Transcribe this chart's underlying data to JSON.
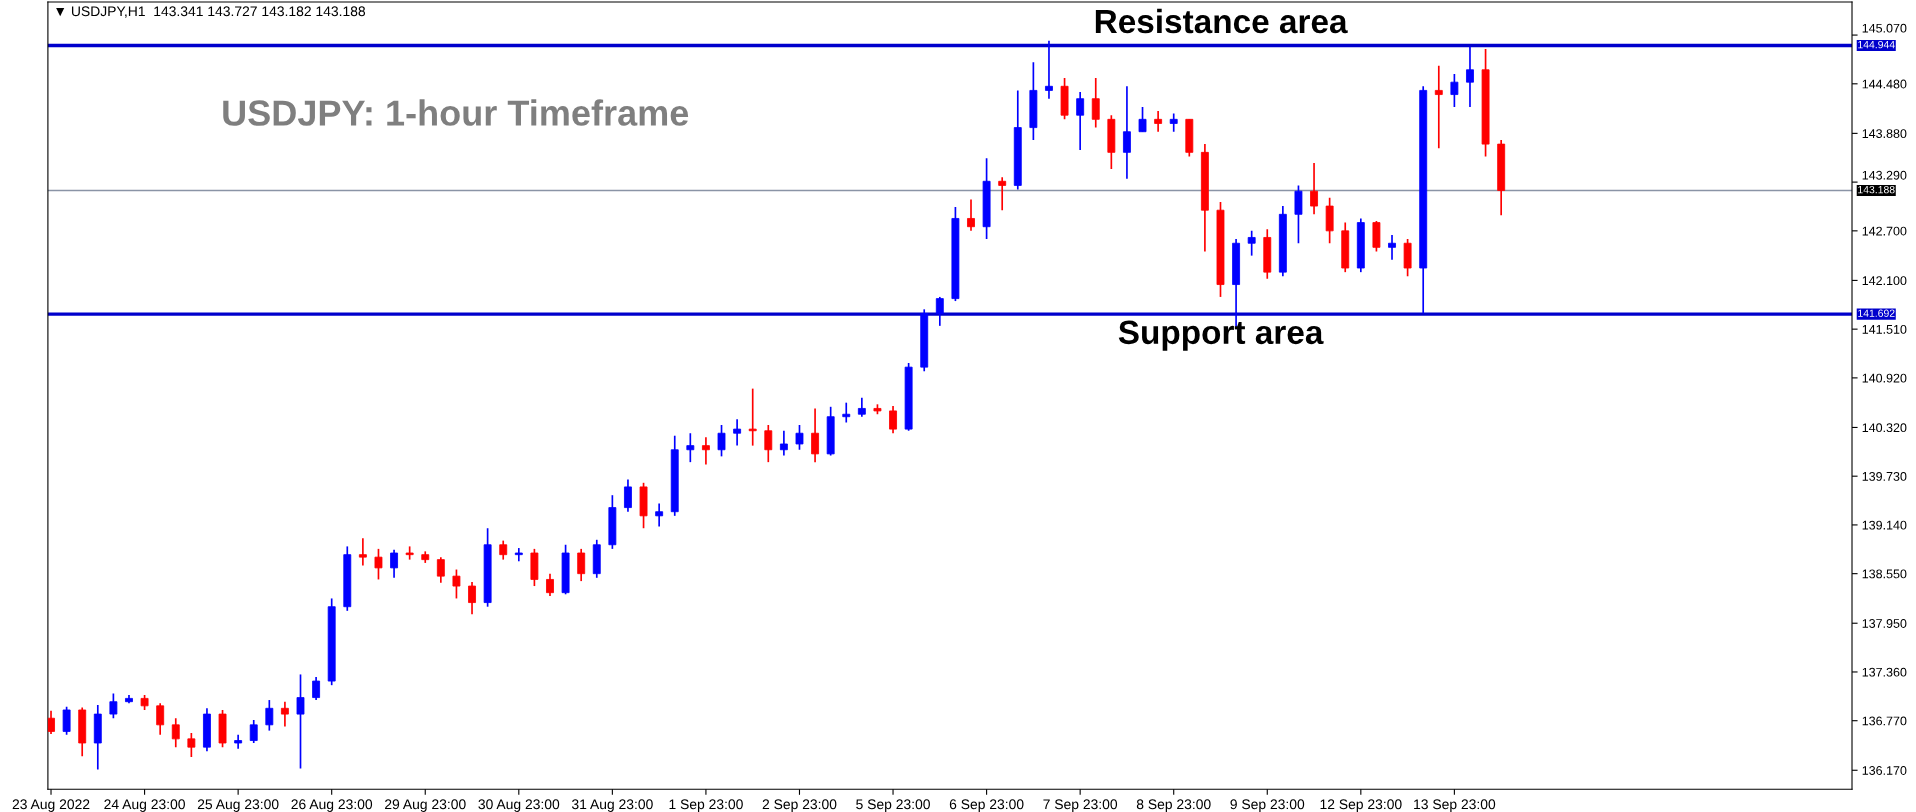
{
  "chart_data": {
    "type": "candlestick",
    "title": "USDJPY: 1-hour Timeframe",
    "annotations": [
      "▼ USDJPY,H1  143.341 143.727 143.182 143.188",
      "144.944",
      "141.692",
      "143.188"
    ],
    "categories": [
      "23 Aug 2022",
      null,
      null,
      null,
      null,
      null,
      "24 Aug 23:00",
      null,
      null,
      null,
      null,
      null,
      "25 Aug 23:00",
      null,
      null,
      null,
      null,
      null,
      "26 Aug 23:00",
      null,
      null,
      null,
      null,
      null,
      "29 Aug 23:00",
      null,
      null,
      null,
      null,
      null,
      "30 Aug 23:00",
      null,
      null,
      null,
      null,
      null,
      "31 Aug 23:00",
      null,
      null,
      null,
      null,
      null,
      "1 Sep 23:00",
      null,
      null,
      null,
      null,
      null,
      "2 Sep 23:00",
      null,
      null,
      null,
      null,
      null,
      "5 Sep 23:00",
      null,
      null,
      null,
      null,
      null,
      "6 Sep 23:00",
      null,
      null,
      null,
      null,
      null,
      "7 Sep 23:00",
      null,
      null,
      null,
      null,
      null,
      "8 Sep 23:00",
      null,
      null,
      null,
      null,
      null,
      "9 Sep 23:00",
      null,
      null,
      null,
      null,
      null,
      "12 Sep 23:00",
      null,
      null,
      null,
      null,
      null,
      "13 Sep 23:00",
      null,
      null,
      null,
      null,
      null,
      null,
      null,
      null,
      null,
      null,
      null,
      null,
      null,
      null,
      null,
      null,
      null,
      null,
      null,
      null,
      null,
      null,
      null,
      null,
      null
    ],
    "ohlc": [
      [
        136.8,
        136.89,
        136.61,
        136.64
      ],
      [
        136.64,
        136.94,
        136.6,
        136.9
      ],
      [
        136.9,
        136.93,
        136.34,
        136.5
      ],
      [
        136.5,
        136.96,
        136.18,
        136.85
      ],
      [
        136.85,
        137.1,
        136.8,
        137.0
      ],
      [
        137.0,
        137.08,
        136.98,
        137.04
      ],
      [
        137.04,
        137.08,
        136.9,
        136.95
      ],
      [
        136.95,
        136.98,
        136.6,
        136.72
      ],
      [
        136.72,
        136.8,
        136.45,
        136.55
      ],
      [
        136.55,
        136.62,
        136.33,
        136.45
      ],
      [
        136.45,
        136.92,
        136.4,
        136.85
      ],
      [
        136.85,
        136.9,
        136.45,
        136.5
      ],
      [
        136.5,
        136.6,
        136.43,
        136.53
      ],
      [
        136.53,
        136.78,
        136.5,
        136.72
      ],
      [
        136.72,
        137.02,
        136.65,
        136.92
      ],
      [
        136.92,
        137.0,
        136.7,
        136.85
      ],
      [
        136.85,
        137.33,
        136.19,
        137.05
      ],
      [
        137.05,
        137.3,
        137.02,
        137.25
      ],
      [
        137.25,
        138.25,
        137.2,
        138.15
      ],
      [
        138.15,
        138.88,
        138.1,
        138.78
      ],
      [
        138.78,
        138.98,
        138.65,
        138.75
      ],
      [
        138.75,
        138.85,
        138.48,
        138.62
      ],
      [
        138.62,
        138.84,
        138.5,
        138.8
      ],
      [
        138.8,
        138.88,
        138.72,
        138.78
      ],
      [
        138.78,
        138.82,
        138.68,
        138.72
      ],
      [
        138.72,
        138.75,
        138.44,
        138.52
      ],
      [
        138.52,
        138.6,
        138.25,
        138.4
      ],
      [
        138.4,
        138.45,
        138.06,
        138.2
      ],
      [
        138.2,
        139.1,
        138.15,
        138.9
      ],
      [
        138.9,
        138.95,
        138.72,
        138.78
      ],
      [
        138.78,
        138.86,
        138.7,
        138.8
      ],
      [
        138.8,
        138.85,
        138.4,
        138.48
      ],
      [
        138.48,
        138.55,
        138.28,
        138.32
      ],
      [
        138.32,
        138.9,
        138.3,
        138.8
      ],
      [
        138.8,
        138.85,
        138.46,
        138.55
      ],
      [
        138.55,
        138.96,
        138.5,
        138.9
      ],
      [
        138.9,
        139.5,
        138.85,
        139.35
      ],
      [
        139.35,
        139.69,
        139.3,
        139.6
      ],
      [
        139.6,
        139.65,
        139.1,
        139.25
      ],
      [
        139.25,
        139.4,
        139.12,
        139.3
      ],
      [
        139.3,
        140.22,
        139.25,
        140.05
      ],
      [
        140.05,
        140.25,
        139.9,
        140.1
      ],
      [
        140.1,
        140.2,
        139.87,
        140.05
      ],
      [
        140.05,
        140.35,
        139.97,
        140.25
      ],
      [
        140.25,
        140.42,
        140.1,
        140.3
      ],
      [
        140.3,
        140.79,
        140.1,
        140.28
      ],
      [
        140.28,
        140.35,
        139.9,
        140.05
      ],
      [
        140.05,
        140.28,
        139.98,
        140.12
      ],
      [
        140.12,
        140.35,
        140.05,
        140.25
      ],
      [
        140.25,
        140.55,
        139.9,
        140.0
      ],
      [
        140.0,
        140.57,
        139.98,
        140.45
      ],
      [
        140.45,
        140.62,
        140.38,
        140.48
      ],
      [
        140.48,
        140.68,
        140.45,
        140.55
      ],
      [
        140.55,
        140.6,
        140.48,
        140.52
      ],
      [
        140.52,
        140.58,
        140.25,
        140.3
      ],
      [
        140.3,
        141.1,
        140.28,
        141.05
      ],
      [
        141.05,
        141.75,
        141.0,
        141.7
      ],
      [
        141.7,
        141.9,
        141.55,
        141.88
      ],
      [
        141.88,
        142.99,
        141.85,
        142.85
      ],
      [
        142.85,
        143.08,
        142.7,
        142.75
      ],
      [
        142.75,
        143.58,
        142.6,
        143.3
      ],
      [
        143.3,
        143.35,
        142.95,
        143.25
      ],
      [
        143.25,
        144.4,
        143.2,
        143.95
      ],
      [
        143.95,
        144.74,
        143.8,
        144.4
      ],
      [
        144.4,
        145.0,
        144.3,
        144.45
      ],
      [
        144.45,
        144.55,
        144.05,
        144.1
      ],
      [
        144.1,
        144.38,
        143.68,
        144.3
      ],
      [
        144.3,
        144.55,
        143.95,
        144.05
      ],
      [
        144.05,
        144.1,
        143.45,
        143.65
      ],
      [
        143.65,
        144.45,
        143.33,
        143.9
      ],
      [
        143.9,
        144.2,
        143.9,
        144.05
      ],
      [
        144.05,
        144.15,
        143.9,
        144.0
      ],
      [
        144.0,
        144.12,
        143.9,
        144.05
      ],
      [
        144.05,
        144.05,
        143.6,
        143.65
      ],
      [
        143.65,
        143.75,
        142.45,
        142.95
      ],
      [
        142.95,
        143.05,
        141.9,
        142.05
      ],
      [
        142.05,
        142.6,
        141.51,
        142.55
      ],
      [
        142.55,
        142.7,
        142.4,
        142.62
      ],
      [
        142.62,
        142.72,
        142.12,
        142.2
      ],
      [
        142.2,
        143.0,
        142.15,
        142.9
      ],
      [
        142.9,
        143.25,
        142.55,
        143.18
      ],
      [
        143.18,
        143.52,
        142.9,
        143.0
      ],
      [
        143.0,
        143.1,
        142.55,
        142.7
      ],
      [
        142.7,
        142.8,
        142.2,
        142.25
      ],
      [
        142.25,
        142.85,
        142.2,
        142.8
      ],
      [
        142.8,
        142.82,
        142.45,
        142.5
      ],
      [
        142.5,
        142.65,
        142.35,
        142.55
      ],
      [
        142.55,
        142.6,
        142.15,
        142.25
      ],
      [
        142.25,
        144.45,
        141.7,
        144.4
      ],
      [
        144.4,
        144.7,
        143.7,
        144.35
      ],
      [
        144.35,
        144.6,
        144.2,
        144.5
      ],
      [
        144.5,
        144.93,
        144.2,
        144.65
      ],
      [
        144.65,
        144.9,
        143.6,
        143.75
      ],
      [
        143.75,
        143.8,
        142.89,
        143.188
      ],
      null,
      null,
      null,
      null,
      null,
      null,
      null,
      null,
      null,
      null,
      null,
      null,
      null,
      null,
      null,
      null,
      null,
      null,
      null,
      null,
      null,
      null
    ],
    "colors": [
      "#ff0000",
      "#0000ff",
      "#ff0000",
      "#0000ff",
      "#0000ff",
      "#0000ff",
      "#ff0000",
      "#ff0000",
      "#ff0000",
      "#ff0000",
      "#0000ff",
      "#ff0000",
      "#0000ff",
      "#0000ff",
      "#0000ff",
      "#ff0000",
      "#0000ff",
      "#0000ff",
      "#0000ff",
      "#0000ff",
      "#ff0000",
      "#ff0000",
      "#0000ff",
      "#ff0000",
      "#ff0000",
      "#ff0000",
      "#ff0000",
      "#ff0000",
      "#0000ff",
      "#ff0000",
      "#0000ff",
      "#ff0000",
      "#ff0000",
      "#0000ff",
      "#ff0000",
      "#0000ff",
      "#0000ff",
      "#0000ff",
      "#ff0000",
      "#0000ff",
      "#0000ff",
      "#0000ff",
      "#ff0000",
      "#0000ff",
      "#0000ff",
      "#ff0000",
      "#ff0000",
      "#0000ff",
      "#0000ff",
      "#ff0000",
      "#0000ff",
      "#0000ff",
      "#0000ff",
      "#ff0000",
      "#ff0000",
      "#0000ff",
      "#0000ff",
      "#0000ff",
      "#0000ff",
      "#ff0000",
      "#0000ff",
      "#ff0000",
      "#0000ff",
      "#0000ff",
      "#0000ff",
      "#ff0000",
      "#0000ff",
      "#ff0000",
      "#ff0000",
      "#0000ff",
      "#0000ff",
      "#ff0000",
      "#0000ff",
      "#ff0000",
      "#ff0000",
      "#ff0000",
      "#0000ff",
      "#0000ff",
      "#ff0000",
      "#0000ff",
      "#0000ff",
      "#ff0000",
      "#ff0000",
      "#ff0000",
      "#0000ff",
      "#ff0000",
      "#0000ff",
      "#ff0000",
      "#0000ff",
      "#ff0000",
      "#0000ff",
      "#0000ff",
      "#ff0000",
      "#ff0000",
      null,
      null,
      null,
      null,
      null,
      null,
      null,
      null,
      null,
      null,
      null,
      null,
      null,
      null,
      null,
      null,
      null,
      null,
      null,
      null,
      null,
      null
    ],
    "ylim": [
      135.94,
      145.47
    ],
    "yticks": [
      {
        "value": 145.07,
        "label": "145.070"
      },
      {
        "value": 144.48,
        "label": "144.480"
      },
      {
        "value": 143.88,
        "label": "143.880"
      },
      {
        "value": 143.29,
        "label": "143.290"
      },
      {
        "value": 142.7,
        "label": "142.700"
      },
      {
        "value": 142.1,
        "label": "142.100"
      },
      {
        "value": 141.51,
        "label": "141.510"
      },
      {
        "value": 140.92,
        "label": "140.920"
      },
      {
        "value": 140.32,
        "label": "140.320"
      },
      {
        "value": 139.73,
        "label": "139.730"
      },
      {
        "value": 139.14,
        "label": "139.140"
      },
      {
        "value": 138.55,
        "label": "138.550"
      },
      {
        "value": 137.95,
        "label": "137.950"
      },
      {
        "value": 137.36,
        "label": "137.360"
      },
      {
        "value": 136.77,
        "label": "136.770"
      },
      {
        "value": 136.17,
        "label": "136.170"
      }
    ],
    "ref_lines": [
      {
        "axis": "y",
        "value": 144.944,
        "label": "Resistance area",
        "color": "#0000cc"
      },
      {
        "axis": "y",
        "value": 141.692,
        "label": "Support area",
        "color": "#0000cc"
      },
      {
        "axis": "y",
        "value": 143.188,
        "label": null,
        "color": "#8a94a6"
      }
    ],
    "grid": false
  }
}
